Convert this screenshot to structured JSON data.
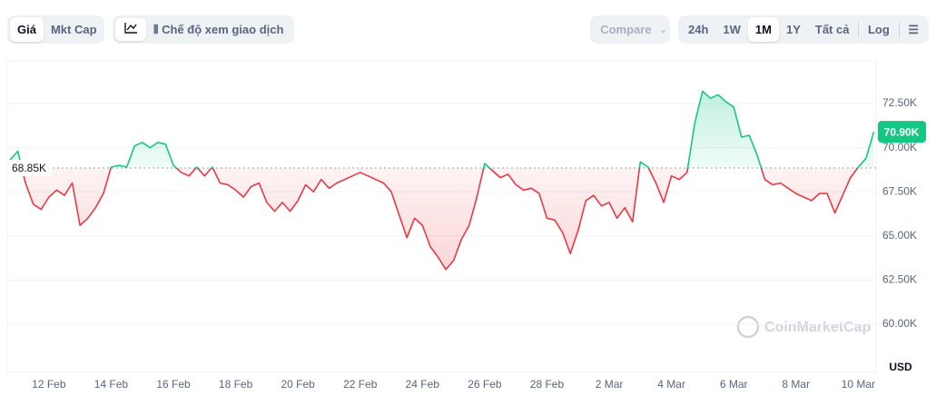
{
  "toolbar": {
    "metrics": [
      "Giá",
      "Mkt Cap"
    ],
    "view_mode": "Chế độ xem giao dịch",
    "compare": "Compare",
    "ranges": [
      "24h",
      "1W",
      "1M",
      "1Y",
      "Tất cả"
    ],
    "log": "Log"
  },
  "chart_data": {
    "type": "line",
    "categories": [
      null,
      null,
      null,
      null,
      null,
      "12 Feb",
      null,
      null,
      null,
      null,
      null,
      null,
      null,
      "14 Feb",
      null,
      null,
      null,
      null,
      null,
      null,
      null,
      "16 Feb",
      null,
      null,
      null,
      null,
      null,
      null,
      null,
      "18 Feb",
      null,
      null,
      null,
      null,
      null,
      null,
      null,
      "20 Feb",
      null,
      null,
      null,
      null,
      null,
      null,
      null,
      "22 Feb",
      null,
      null,
      null,
      null,
      null,
      null,
      null,
      "24 Feb",
      null,
      null,
      null,
      null,
      null,
      null,
      null,
      "26 Feb",
      null,
      null,
      null,
      null,
      null,
      null,
      null,
      "28 Feb",
      null,
      null,
      null,
      null,
      null,
      null,
      null,
      "2 Mar",
      null,
      null,
      null,
      null,
      null,
      null,
      null,
      "4 Mar",
      null,
      null,
      null,
      null,
      null,
      null,
      null,
      "6 Mar",
      null,
      null,
      null,
      null,
      null,
      null,
      null,
      "8 Mar",
      null,
      null,
      null,
      null,
      null,
      null,
      null,
      "10 Mar",
      null,
      null
    ],
    "values": [
      69300,
      69800,
      68000,
      66800,
      66500,
      67200,
      67600,
      67300,
      68000,
      65600,
      66000,
      66600,
      67400,
      68900,
      69000,
      68900,
      70100,
      70300,
      70000,
      70300,
      70200,
      69000,
      68600,
      68400,
      68900,
      68400,
      68900,
      68000,
      67900,
      67600,
      67200,
      67800,
      68000,
      66900,
      66400,
      66900,
      66400,
      67000,
      67900,
      67500,
      68200,
      67700,
      68000,
      68200,
      68400,
      68600,
      68400,
      68200,
      68000,
      67500,
      66200,
      64900,
      66000,
      65600,
      64400,
      63800,
      63100,
      63600,
      64800,
      65600,
      67200,
      69100,
      68700,
      68300,
      68500,
      67900,
      67600,
      67700,
      67400,
      66000,
      65900,
      65200,
      64000,
      65300,
      67000,
      67300,
      66700,
      66900,
      66000,
      66600,
      65800,
      69200,
      68900,
      68000,
      66900,
      68400,
      68200,
      68600,
      71400,
      73200,
      72800,
      73000,
      72600,
      72300,
      70600,
      70700,
      69600,
      68200,
      67900,
      68000,
      67700,
      67400,
      67200,
      67000,
      67400,
      67400,
      66300,
      67300,
      68300,
      68900,
      69400,
      70900
    ],
    "up_color": "#16c784",
    "down_color": "#ea3943",
    "reference": {
      "value": 68850,
      "label": "68.85K"
    },
    "last_price": {
      "value": 70900,
      "label": "70.90K"
    },
    "ylim": [
      57270,
      74920
    ],
    "yticks": [
      {
        "value": 60000,
        "label": "60.00K"
      },
      {
        "value": 62500,
        "label": "62.50K"
      },
      {
        "value": 65000,
        "label": "65.00K"
      },
      {
        "value": 67500,
        "label": "67.50K"
      },
      {
        "value": 70000,
        "label": "70.00K"
      },
      {
        "value": 72500,
        "label": "72.50K"
      }
    ],
    "y_axis_label": "USD",
    "grid": true,
    "watermark": "CoinMarketCap"
  }
}
